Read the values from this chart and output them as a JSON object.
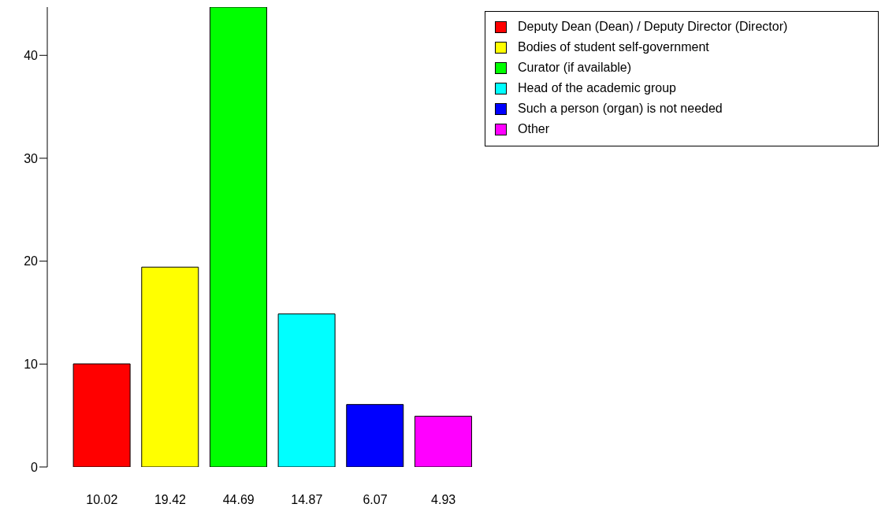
{
  "chart_data": {
    "type": "bar",
    "categories": [
      "10.02",
      "19.42",
      "44.69",
      "14.87",
      "6.07",
      "4.93"
    ],
    "series": [
      {
        "name": "Deputy Dean (Dean) / Deputy Director (Director)",
        "color": "#ff0000",
        "values": [
          10.02,
          null,
          null,
          null,
          null,
          null
        ]
      },
      {
        "name": "Bodies of student self-government",
        "color": "#ffff00",
        "values": [
          null,
          19.42,
          null,
          null,
          null,
          null
        ]
      },
      {
        "name": "Curator (if available)",
        "color": "#00ff00",
        "values": [
          null,
          null,
          44.69,
          null,
          null,
          null
        ]
      },
      {
        "name": "Head of the academic group",
        "color": "#00ffff",
        "values": [
          null,
          null,
          null,
          14.87,
          null,
          null
        ]
      },
      {
        "name": "Such a person (organ) is not needed",
        "color": "#0000ff",
        "values": [
          null,
          null,
          null,
          null,
          6.07,
          null
        ]
      },
      {
        "name": "Other",
        "color": "#ff00ff",
        "values": [
          null,
          null,
          null,
          null,
          null,
          4.93
        ]
      }
    ],
    "stacked": true,
    "ylim": [
      0,
      44.69
    ],
    "yticks": [
      0,
      10,
      20,
      30,
      40
    ],
    "grid": false,
    "legend": "top right"
  }
}
